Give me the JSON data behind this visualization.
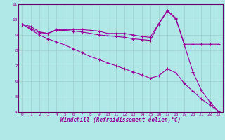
{
  "title": "",
  "xlabel": "Windchill (Refroidissement éolien,°C)",
  "bg_color": "#b0e8e8",
  "line_color": "#990099",
  "grid_color": "#9ecece",
  "spine_color": "#660066",
  "xlim": [
    -0.5,
    23.5
  ],
  "ylim": [
    4,
    11
  ],
  "xticks": [
    0,
    1,
    2,
    3,
    4,
    5,
    6,
    7,
    8,
    9,
    10,
    11,
    12,
    13,
    14,
    15,
    16,
    17,
    18,
    19,
    20,
    21,
    22,
    23
  ],
  "yticks": [
    4,
    5,
    6,
    7,
    8,
    9,
    10,
    11
  ],
  "series": [
    {
      "x": [
        0,
        1,
        2,
        3,
        4,
        5,
        6,
        7,
        8,
        9,
        10,
        11,
        12,
        13,
        14,
        15,
        16,
        17,
        18,
        19,
        20,
        21,
        22,
        23
      ],
      "y": [
        9.7,
        9.55,
        9.2,
        9.1,
        9.35,
        9.35,
        9.35,
        9.35,
        9.3,
        9.25,
        9.1,
        9.1,
        9.1,
        9.0,
        8.9,
        8.85,
        9.75,
        10.6,
        10.1,
        8.4,
        8.4,
        8.4,
        8.4,
        8.4
      ]
    },
    {
      "x": [
        0,
        1,
        2,
        3,
        4,
        5,
        6,
        7,
        8,
        9,
        10,
        11,
        12,
        13,
        14,
        15,
        16,
        17,
        18,
        19,
        20,
        21,
        22,
        23
      ],
      "y": [
        9.7,
        9.4,
        9.15,
        9.1,
        9.3,
        9.3,
        9.25,
        9.2,
        9.1,
        9.0,
        8.95,
        8.9,
        8.85,
        8.75,
        8.7,
        8.65,
        9.7,
        10.55,
        10.05,
        8.35,
        6.6,
        5.4,
        4.65,
        4.05
      ]
    },
    {
      "x": [
        0,
        1,
        2,
        3,
        4,
        5,
        6,
        7,
        8,
        9,
        10,
        11,
        12,
        13,
        14,
        15,
        16,
        17,
        18,
        19,
        20,
        21,
        22,
        23
      ],
      "y": [
        9.7,
        9.35,
        9.0,
        8.75,
        8.55,
        8.35,
        8.1,
        7.85,
        7.6,
        7.4,
        7.2,
        7.0,
        6.8,
        6.6,
        6.4,
        6.2,
        6.35,
        6.8,
        6.55,
        5.85,
        5.35,
        4.85,
        4.45,
        4.05
      ]
    }
  ],
  "marker": "+",
  "markersize": 3,
  "linewidth": 0.8,
  "tick_fontsize": 4.5,
  "label_fontsize": 5.5
}
